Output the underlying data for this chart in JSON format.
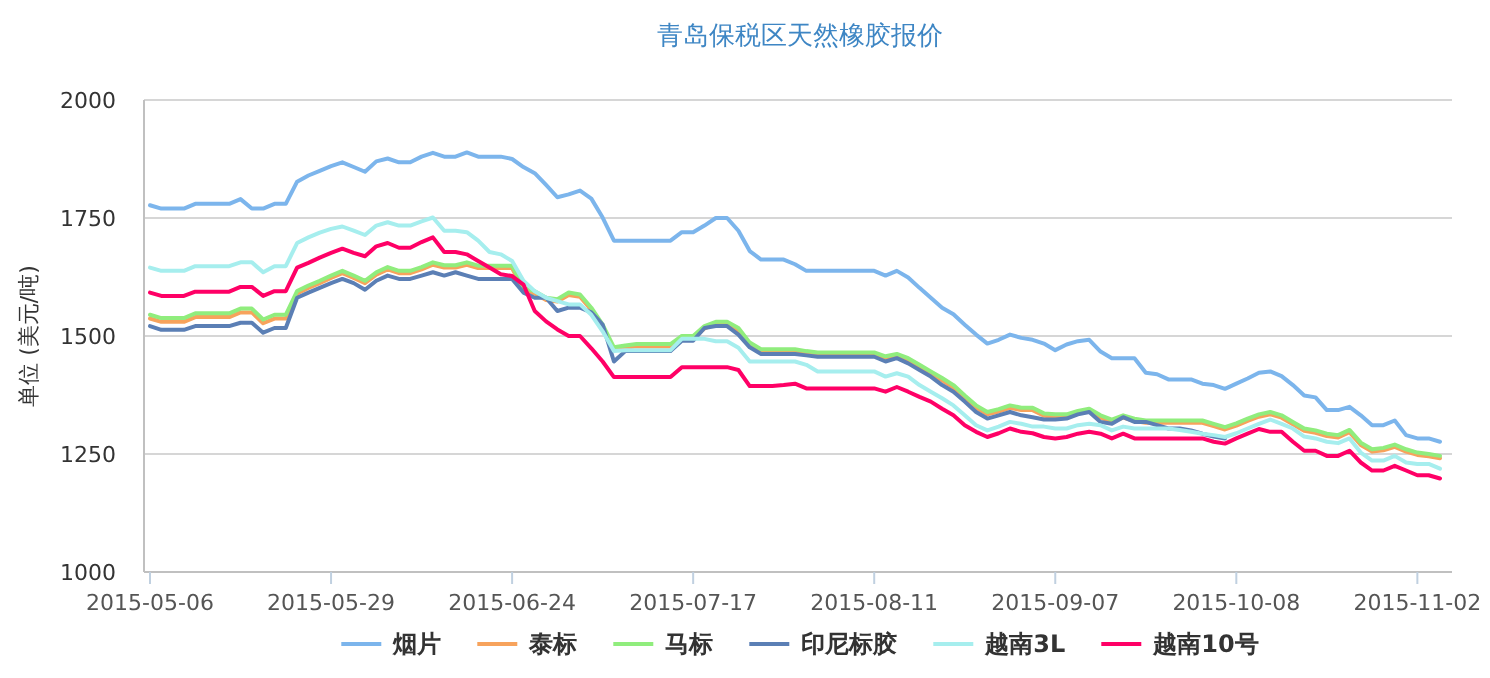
{
  "chart_data": {
    "type": "line",
    "title": "青岛保税区天然橡胶报价",
    "ylabel": "单位 (美元/吨)",
    "categories": [
      "2015-05-06",
      null,
      null,
      null,
      null,
      null,
      null,
      null,
      null,
      null,
      null,
      null,
      null,
      null,
      null,
      null,
      "2015-05-29",
      null,
      null,
      null,
      null,
      null,
      null,
      null,
      null,
      null,
      null,
      null,
      null,
      null,
      null,
      null,
      "2015-06-24",
      null,
      null,
      null,
      null,
      null,
      null,
      null,
      null,
      null,
      null,
      null,
      null,
      null,
      null,
      null,
      "2015-07-17",
      null,
      null,
      null,
      null,
      null,
      null,
      null,
      null,
      null,
      null,
      null,
      null,
      null,
      null,
      null,
      "2015-08-11",
      null,
      null,
      null,
      null,
      null,
      null,
      null,
      null,
      null,
      null,
      null,
      null,
      null,
      null,
      null,
      "2015-09-07",
      null,
      null,
      null,
      null,
      null,
      null,
      null,
      null,
      null,
      null,
      null,
      null,
      null,
      null,
      null,
      "2015-10-08",
      null,
      null,
      null,
      null,
      null,
      null,
      null,
      null,
      null,
      null,
      null,
      null,
      null,
      null,
      null,
      "2015-11-02",
      null,
      null
    ],
    "ylim": [
      1000,
      2000
    ],
    "yticks": [
      1000,
      1250,
      1500,
      1750,
      2000
    ],
    "grid": "y",
    "legend": "bottom",
    "series": [
      {
        "name": "烟片",
        "color": "#7cb5ec",
        "values": [
          1777,
          1770,
          1770,
          1770,
          1780,
          1780,
          1780,
          1780,
          1790,
          1770,
          1770,
          1780,
          1780,
          1827,
          1840,
          1850,
          1860,
          1868,
          1858,
          1848,
          1870,
          1876,
          1868,
          1868,
          1880,
          1888,
          1880,
          1880,
          1889,
          1880,
          1880,
          1880,
          1875,
          1858,
          1845,
          1820,
          1794,
          1800,
          1808,
          1791,
          1751,
          1702,
          1702,
          1702,
          1702,
          1702,
          1702,
          1720,
          1720,
          1734,
          1750,
          1750,
          1723,
          1680,
          1662,
          1662,
          1662,
          1652,
          1638,
          1638,
          1638,
          1638,
          1638,
          1638,
          1638,
          1628,
          1638,
          1624,
          1602,
          1581,
          1560,
          1546,
          1524,
          1503,
          1484,
          1492,
          1503,
          1496,
          1492,
          1484,
          1470,
          1482,
          1489,
          1492,
          1467,
          1453,
          1453,
          1453,
          1422,
          1419,
          1408,
          1408,
          1408,
          1399,
          1396,
          1388,
          1399,
          1410,
          1422,
          1425,
          1415,
          1396,
          1374,
          1370,
          1343,
          1343,
          1350,
          1332,
          1311,
          1311,
          1321,
          1290,
          1283,
          1283,
          1276
        ]
      },
      {
        "name": "泰标",
        "color": "#f7a35c",
        "values": [
          1537,
          1530,
          1530,
          1530,
          1540,
          1540,
          1540,
          1540,
          1550,
          1550,
          1527,
          1537,
          1537,
          1590,
          1602,
          1612,
          1623,
          1633,
          1623,
          1612,
          1630,
          1641,
          1633,
          1633,
          1641,
          1651,
          1645,
          1645,
          1651,
          1644,
          1644,
          1644,
          1644,
          1597,
          1590,
          1576,
          1573,
          1587,
          1583,
          1555,
          1519,
          1471,
          1475,
          1478,
          1478,
          1478,
          1478,
          1495,
          1495,
          1516,
          1525,
          1525,
          1512,
          1481,
          1467,
          1467,
          1467,
          1467,
          1463,
          1460,
          1460,
          1460,
          1460,
          1460,
          1460,
          1452,
          1457,
          1448,
          1434,
          1420,
          1406,
          1391,
          1369,
          1348,
          1334,
          1340,
          1348,
          1343,
          1343,
          1331,
          1329,
          1329,
          1336,
          1341,
          1327,
          1318,
          1327,
          1320,
          1316,
          1316,
          1316,
          1316,
          1316,
          1316,
          1309,
          1302,
          1310,
          1320,
          1329,
          1334,
          1327,
          1313,
          1299,
          1295,
          1288,
          1285,
          1296,
          1269,
          1255,
          1258,
          1265,
          1255,
          1248,
          1245,
          1241
        ]
      },
      {
        "name": "马标",
        "color": "#90ed7d",
        "values": [
          1545,
          1538,
          1538,
          1538,
          1548,
          1548,
          1548,
          1548,
          1558,
          1558,
          1535,
          1545,
          1545,
          1595,
          1607,
          1617,
          1628,
          1638,
          1628,
          1617,
          1635,
          1646,
          1638,
          1638,
          1646,
          1656,
          1650,
          1650,
          1656,
          1649,
          1649,
          1649,
          1649,
          1602,
          1595,
          1581,
          1578,
          1592,
          1588,
          1560,
          1524,
          1476,
          1480,
          1483,
          1483,
          1483,
          1483,
          1500,
          1500,
          1521,
          1530,
          1530,
          1517,
          1486,
          1472,
          1472,
          1472,
          1472,
          1468,
          1465,
          1465,
          1465,
          1465,
          1465,
          1465,
          1457,
          1462,
          1453,
          1439,
          1425,
          1411,
          1396,
          1374,
          1353,
          1339,
          1345,
          1353,
          1348,
          1348,
          1336,
          1334,
          1334,
          1341,
          1346,
          1332,
          1323,
          1332,
          1325,
          1321,
          1321,
          1321,
          1321,
          1321,
          1321,
          1314,
          1307,
          1315,
          1325,
          1334,
          1339,
          1332,
          1318,
          1304,
          1300,
          1293,
          1290,
          1301,
          1274,
          1260,
          1263,
          1270,
          1260,
          1253,
          1250,
          1246
        ]
      },
      {
        "name": "印尼标胶",
        "color": "#5b7fb5",
        "values": [
          1521,
          1513,
          1513,
          1513,
          1521,
          1521,
          1521,
          1521,
          1528,
          1528,
          1507,
          1517,
          1517,
          1581,
          1592,
          1602,
          1612,
          1621,
          1612,
          1598,
          1617,
          1628,
          1621,
          1621,
          1628,
          1635,
          1628,
          1635,
          1628,
          1621,
          1621,
          1621,
          1621,
          1592,
          1581,
          1581,
          1553,
          1560,
          1560,
          1550,
          1524,
          1446,
          1468,
          1468,
          1468,
          1468,
          1468,
          1490,
          1490,
          1517,
          1521,
          1521,
          1503,
          1476,
          1462,
          1462,
          1462,
          1462,
          1459,
          1456,
          1456,
          1456,
          1456,
          1456,
          1456,
          1446,
          1453,
          1442,
          1428,
          1414,
          1396,
          1382,
          1361,
          1339,
          1325,
          1332,
          1339,
          1332,
          1328,
          1323,
          1323,
          1325,
          1334,
          1339,
          1318,
          1314,
          1328,
          1318,
          1318,
          1311,
          1304,
          1304,
          1300,
          1293,
          1287,
          1283,
          null,
          null,
          null,
          null,
          null,
          null,
          null,
          null,
          null,
          null,
          null,
          null,
          null,
          null,
          null,
          null,
          null,
          null,
          null
        ]
      },
      {
        "name": "越南3L",
        "color": "#a6eeee",
        "values": [
          1645,
          1638,
          1638,
          1638,
          1648,
          1648,
          1648,
          1648,
          1656,
          1656,
          1635,
          1648,
          1648,
          1697,
          1709,
          1719,
          1727,
          1732,
          1723,
          1714,
          1734,
          1741,
          1734,
          1734,
          1743,
          1751,
          1723,
          1723,
          1720,
          1702,
          1678,
          1673,
          1659,
          1617,
          1595,
          1581,
          1574,
          1567,
          1567,
          1545,
          1510,
          1468,
          1470,
          1470,
          1470,
          1470,
          1470,
          1494,
          1494,
          1494,
          1489,
          1489,
          1475,
          1446,
          1446,
          1446,
          1446,
          1446,
          1439,
          1425,
          1425,
          1425,
          1425,
          1425,
          1425,
          1414,
          1421,
          1414,
          1396,
          1382,
          1368,
          1353,
          1332,
          1311,
          1300,
          1308,
          1318,
          1314,
          1308,
          1308,
          1304,
          1304,
          1311,
          1314,
          1311,
          1300,
          1308,
          1304,
          1304,
          1304,
          1304,
          1301,
          1297,
          1293,
          1290,
          1286,
          1294,
          1304,
          1314,
          1323,
          1314,
          1304,
          1287,
          1283,
          1276,
          1273,
          1283,
          1253,
          1236,
          1236,
          1246,
          1232,
          1229,
          1229,
          1219
        ]
      },
      {
        "name": "越南10号",
        "color": "#ff0066",
        "values": [
          1592,
          1585,
          1585,
          1585,
          1594,
          1594,
          1594,
          1594,
          1604,
          1604,
          1585,
          1595,
          1595,
          1645,
          1655,
          1666,
          1676,
          1685,
          1676,
          1669,
          1690,
          1697,
          1687,
          1687,
          1699,
          1709,
          1678,
          1678,
          1673,
          1659,
          1645,
          1631,
          1627,
          1609,
          1553,
          1531,
          1514,
          1500,
          1500,
          1474,
          1446,
          1413,
          1413,
          1413,
          1413,
          1413,
          1413,
          1434,
          1434,
          1434,
          1434,
          1434,
          1428,
          1394,
          1394,
          1394,
          1396,
          1399,
          1389,
          1389,
          1389,
          1389,
          1389,
          1389,
          1389,
          1382,
          1392,
          1382,
          1371,
          1361,
          1346,
          1332,
          1311,
          1297,
          1286,
          1294,
          1304,
          1297,
          1294,
          1286,
          1283,
          1286,
          1293,
          1297,
          1293,
          1283,
          1293,
          1283,
          1283,
          1283,
          1283,
          1283,
          1283,
          1283,
          1276,
          1272,
          1283,
          1293,
          1303,
          1297,
          1297,
          1276,
          1257,
          1257,
          1246,
          1246,
          1257,
          1232,
          1215,
          1215,
          1225,
          1215,
          1205,
          1205,
          1198
        ]
      }
    ]
  }
}
